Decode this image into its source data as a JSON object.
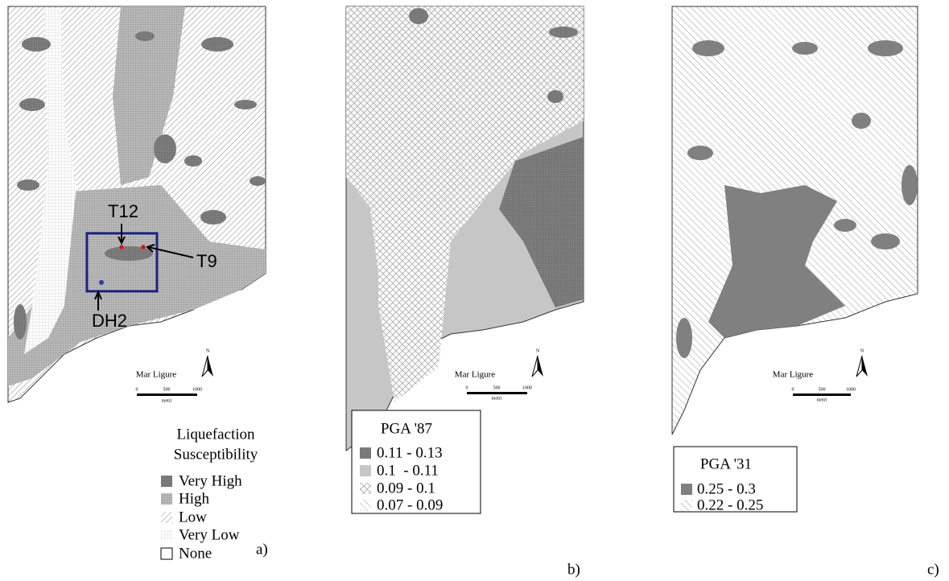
{
  "panels": [
    {
      "label": "a)",
      "markers": [
        "T12",
        "T9",
        "DH2"
      ],
      "sea": "Mar Ligure",
      "north": "N",
      "scale": {
        "ticks": [
          "0",
          "500",
          "1000"
        ],
        "unit": "metri"
      },
      "legend": {
        "title": [
          "Liquefaction",
          "Susceptibility"
        ],
        "items": [
          "Very High",
          "High",
          "Low",
          "Very Low",
          "None"
        ]
      }
    },
    {
      "label": "b)",
      "sea": "Mar Ligure",
      "north": "N",
      "scale": {
        "ticks": [
          "0",
          "500",
          "1000"
        ],
        "unit": "metri"
      },
      "legend": {
        "title": [
          "PGA '87"
        ],
        "items": [
          "0.11 - 0.13",
          "0.1  - 0.11",
          "0.09 - 0.1",
          "0.07 - 0.09"
        ]
      }
    },
    {
      "label": "c)",
      "sea": "Mar Ligure",
      "north": "N",
      "scale": {
        "ticks": [
          "0",
          "500",
          "1000"
        ],
        "unit": "metri"
      },
      "legend": {
        "title": [
          "PGA '31"
        ],
        "items": [
          "0.25 - 0.3",
          "0.22 - 0.25"
        ]
      }
    }
  ]
}
